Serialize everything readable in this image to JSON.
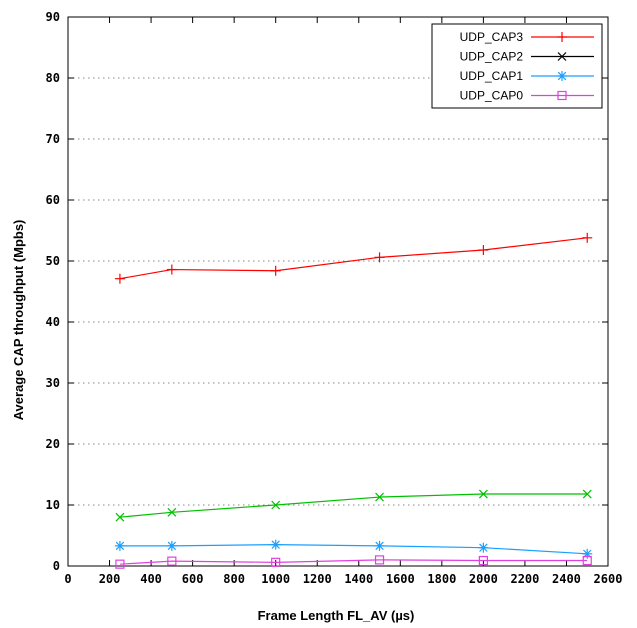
{
  "chart_data": {
    "type": "line",
    "title": "",
    "xlabel": "Frame Length FL_AV (µs)",
    "ylabel": "Average CAP throughput (Mpbs)",
    "xlim": [
      0,
      2600
    ],
    "ylim": [
      0,
      90
    ],
    "xticks": [
      "0",
      "200",
      "400",
      "600",
      "800",
      "1000",
      "1200",
      "1400",
      "1600",
      "1800",
      "2000",
      "2200",
      "2400",
      "2600"
    ],
    "yticks": [
      "0",
      "10",
      "20",
      "30",
      "40",
      "50",
      "60",
      "70",
      "80",
      "90"
    ],
    "grid": "horizontal dotted",
    "legend_position": "top-right",
    "series": [
      {
        "name": "UDP_CAP3",
        "color": "#ff0000",
        "marker": "plus",
        "x": [
          250,
          500,
          1000,
          1500,
          2000,
          2500
        ],
        "y": [
          47.1,
          48.6,
          48.4,
          50.6,
          51.8,
          53.8
        ]
      },
      {
        "name": "UDP_CAP2",
        "color": "#00c000",
        "legend_color": "#000000",
        "marker": "cross",
        "x": [
          250,
          500,
          1000,
          1500,
          2000,
          2500
        ],
        "y": [
          8.0,
          8.8,
          10.0,
          11.3,
          11.8,
          11.8
        ]
      },
      {
        "name": "UDP_CAP1",
        "color": "#1a9fff",
        "marker": "star",
        "x": [
          250,
          500,
          1000,
          1500,
          2000,
          2500
        ],
        "y": [
          3.3,
          3.3,
          3.5,
          3.3,
          3.0,
          2.0
        ]
      },
      {
        "name": "UDP_CAP0",
        "color": "#e040e0",
        "marker": "square",
        "x": [
          250,
          500,
          1000,
          1500,
          2000,
          2500
        ],
        "y": [
          0.3,
          0.8,
          0.6,
          1.0,
          0.9,
          0.9
        ]
      }
    ]
  }
}
